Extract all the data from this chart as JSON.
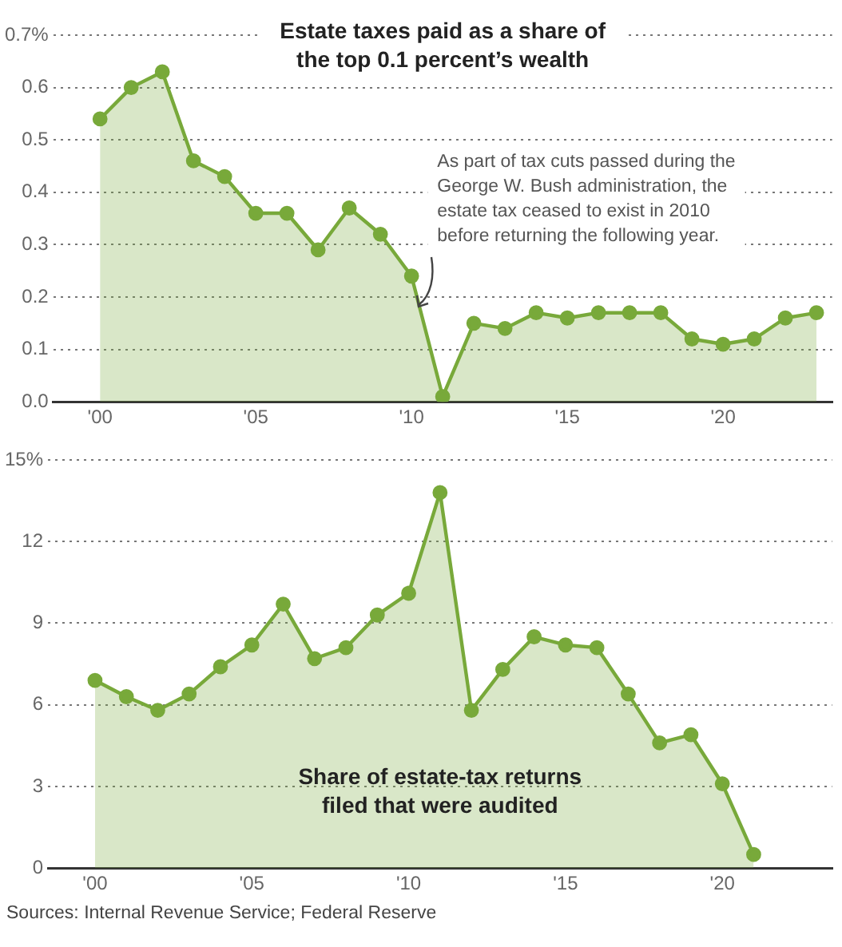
{
  "chart_data": [
    {
      "type": "area",
      "title": "Estate taxes paid as a share of\nthe top 0.1 percent’s wealth",
      "annotations": [
        "As part of tax cuts passed during the\nGeorge W. Bush administration, the\nestate tax ceased to exist in 2010\nbefore returning the following year."
      ],
      "x": [
        2000,
        2001,
        2002,
        2003,
        2004,
        2005,
        2006,
        2007,
        2008,
        2009,
        2010,
        2011,
        2012,
        2013,
        2014,
        2015,
        2016,
        2017,
        2018,
        2019,
        2020,
        2021,
        2022,
        2023
      ],
      "series": [
        {
          "color": "#78a93a",
          "values": [
            0.54,
            0.6,
            0.63,
            0.46,
            0.43,
            0.36,
            0.36,
            0.29,
            0.37,
            0.32,
            0.24,
            0.01,
            0.15,
            0.14,
            0.17,
            0.16,
            0.17,
            0.17,
            0.17,
            0.12,
            0.11,
            0.12,
            0.16,
            0.17
          ]
        }
      ],
      "xlim": [
        1998.5,
        2023.5
      ],
      "xticks": [
        {
          "value": 2000,
          "label": "'00"
        },
        {
          "value": 2005,
          "label": "'05"
        },
        {
          "value": 2010,
          "label": "'10"
        },
        {
          "value": 2015,
          "label": "'15"
        },
        {
          "value": 2020,
          "label": "'20"
        }
      ],
      "ylim": [
        0,
        0.7
      ],
      "yticks": [
        {
          "value": 0,
          "label": "0.0"
        },
        0.1,
        0.2,
        0.3,
        0.4,
        0.5,
        0.6,
        {
          "value": 0.7,
          "label": "0.7%"
        }
      ],
      "grid": "y",
      "legend": false,
      "marker": "circle",
      "line_style": "solid"
    },
    {
      "type": "area",
      "title": "Share of estate-tax returns\nfiled that were audited",
      "annotations": [
        "Sources: Internal Revenue Service; Federal Reserve"
      ],
      "x": [
        2000,
        2001,
        2002,
        2003,
        2004,
        2005,
        2006,
        2007,
        2008,
        2009,
        2010,
        2011,
        2012,
        2013,
        2014,
        2015,
        2016,
        2017,
        2018,
        2019,
        2020,
        2021
      ],
      "series": [
        {
          "color": "#78a93a",
          "values": [
            6.9,
            6.3,
            5.8,
            6.4,
            7.4,
            8.2,
            9.7,
            7.7,
            8.1,
            9.3,
            10.1,
            13.8,
            5.8,
            7.3,
            8.5,
            8.2,
            8.1,
            6.4,
            4.6,
            4.9,
            3.1,
            0.5
          ]
        }
      ],
      "xlim": [
        1998.5,
        2023.5
      ],
      "xticks": [
        {
          "value": 2000,
          "label": "'00"
        },
        {
          "value": 2005,
          "label": "'05"
        },
        {
          "value": 2010,
          "label": "'10"
        },
        {
          "value": 2015,
          "label": "'15"
        },
        {
          "value": 2020,
          "label": "'20"
        }
      ],
      "ylim": [
        0,
        15
      ],
      "yticks": [
        0,
        3,
        6,
        9,
        12,
        {
          "value": 15,
          "label": "15%"
        }
      ],
      "grid": "y",
      "legend": false,
      "marker": "circle",
      "line_style": "solid"
    }
  ]
}
